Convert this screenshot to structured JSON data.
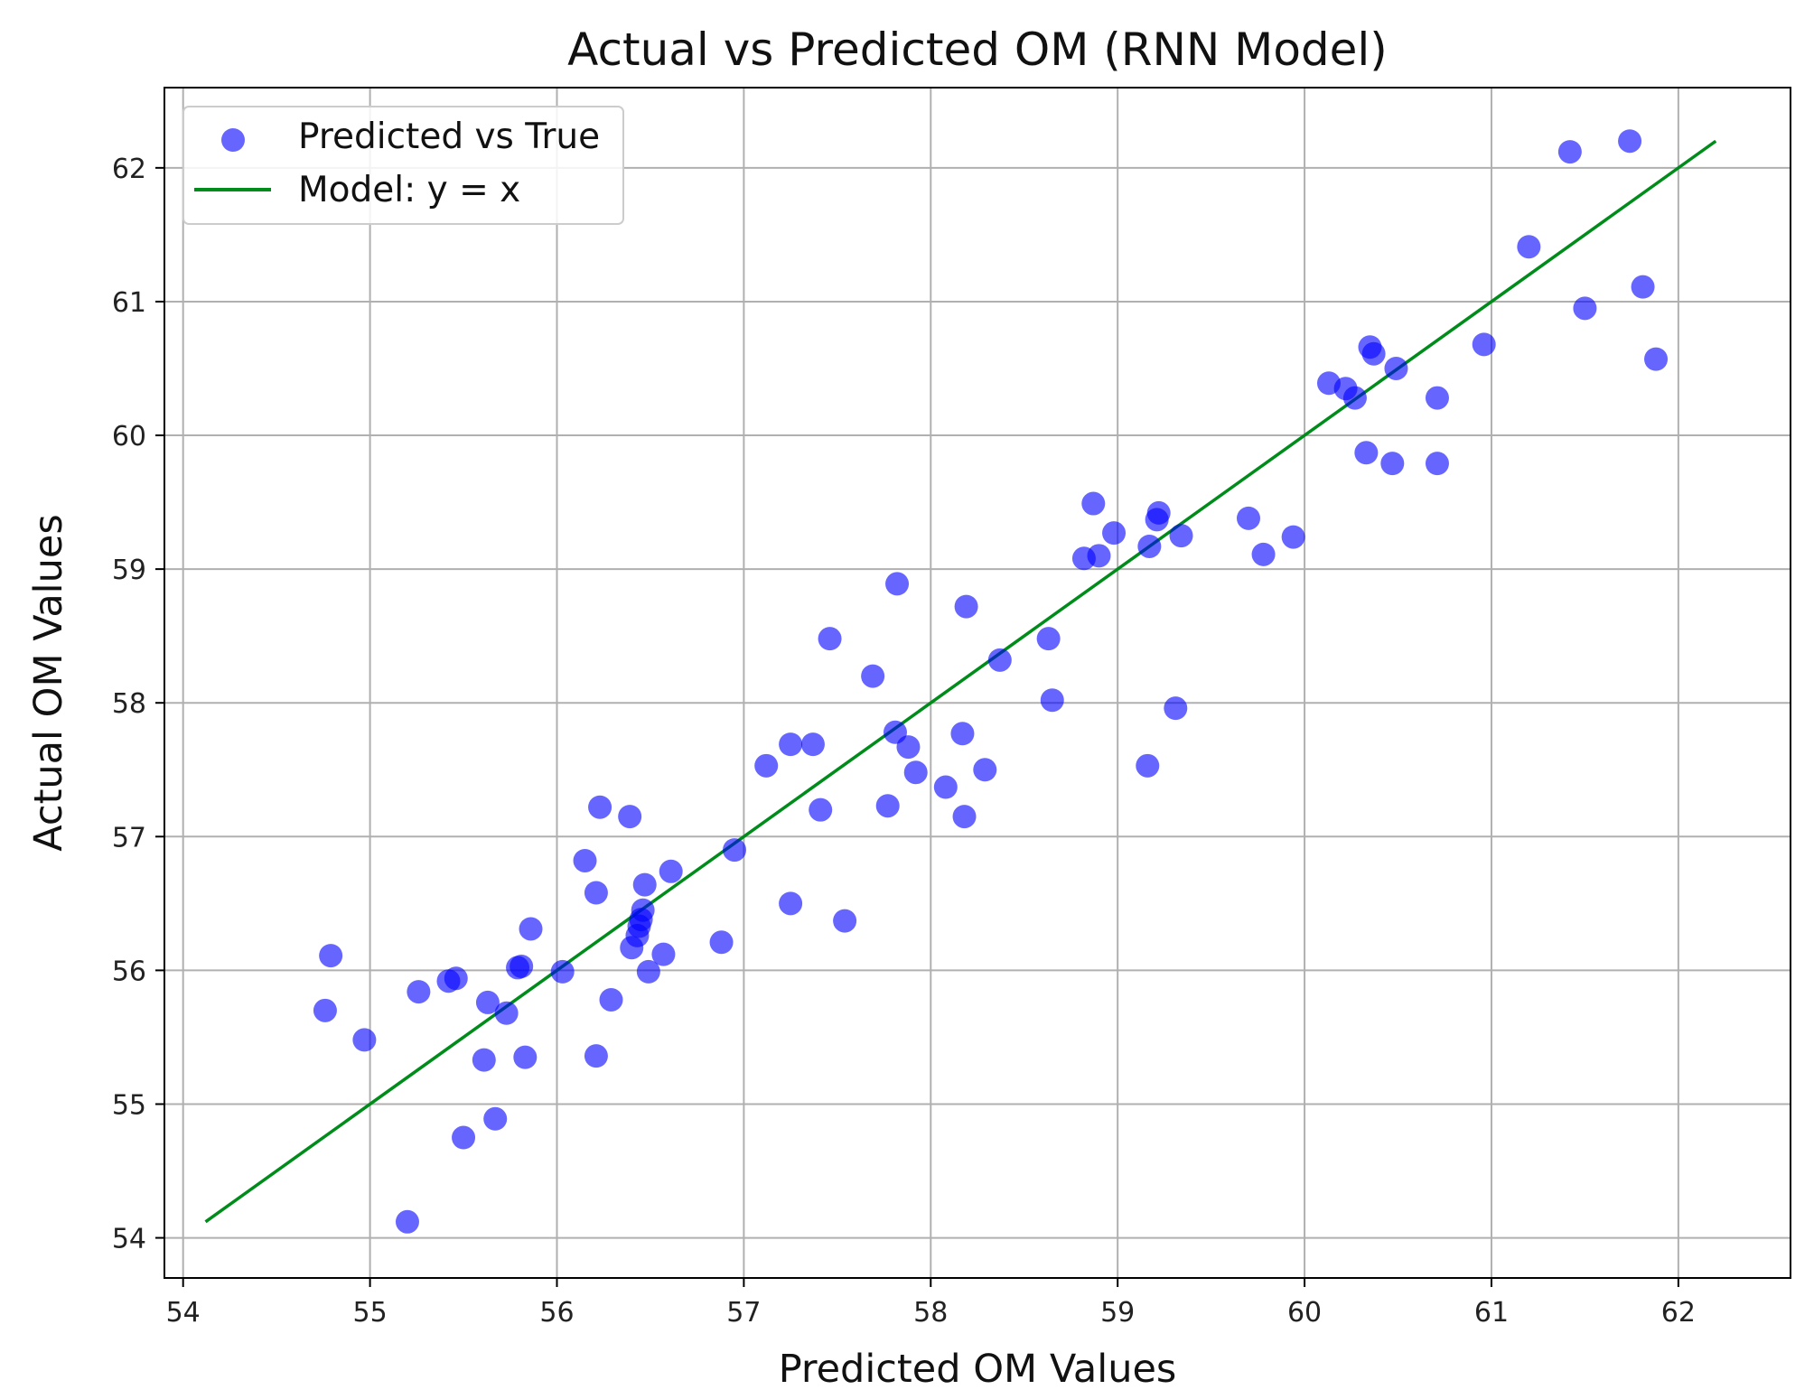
{
  "chart_data": {
    "type": "scatter",
    "title": "Actual vs Predicted OM (RNN Model)",
    "xlabel": "Predicted OM Values",
    "ylabel": "Actual OM Values",
    "xlim": [
      53.9,
      62.6
    ],
    "ylim": [
      53.7,
      62.6
    ],
    "xticks": [
      "54",
      "55",
      "56",
      "57",
      "58",
      "59",
      "60",
      "61",
      "62"
    ],
    "yticks": [
      "54",
      "55",
      "56",
      "57",
      "58",
      "59",
      "60",
      "61",
      "62"
    ],
    "grid": true,
    "legend_position": "top-left",
    "colors": {
      "points": "#0000ff",
      "line": "#008c1a",
      "grid": "#b0b0b0",
      "frame": "#000000"
    },
    "series": [
      {
        "name": "Predicted vs True",
        "kind": "scatter",
        "x": [
          54.76,
          54.79,
          54.97,
          55.2,
          55.26,
          55.42,
          55.46,
          55.5,
          55.61,
          55.63,
          55.67,
          55.73,
          55.79,
          55.81,
          55.83,
          55.86,
          56.03,
          56.15,
          56.21,
          56.21,
          56.23,
          56.29,
          56.39,
          56.4,
          56.43,
          56.44,
          56.45,
          56.46,
          56.47,
          56.49,
          56.57,
          56.61,
          56.88,
          56.95,
          57.12,
          57.25,
          57.25,
          57.37,
          57.41,
          57.46,
          57.54,
          57.69,
          57.77,
          57.81,
          57.82,
          57.88,
          57.92,
          58.08,
          58.17,
          58.18,
          58.19,
          58.29,
          58.37,
          58.63,
          58.65,
          58.82,
          58.87,
          58.9,
          58.98,
          59.16,
          59.17,
          59.21,
          59.22,
          59.31,
          59.34,
          59.7,
          59.78,
          59.94,
          60.13,
          60.22,
          60.27,
          60.33,
          60.35,
          60.37,
          60.47,
          60.49,
          60.71,
          60.71,
          60.96,
          61.2,
          61.42,
          61.5,
          61.74,
          61.81,
          61.88
        ],
        "y": [
          55.7,
          56.11,
          55.48,
          54.12,
          55.84,
          55.92,
          55.94,
          54.75,
          55.33,
          55.76,
          54.89,
          55.68,
          56.02,
          56.03,
          55.35,
          56.31,
          55.99,
          56.82,
          56.58,
          55.36,
          57.22,
          55.78,
          57.15,
          56.17,
          56.26,
          56.33,
          56.38,
          56.45,
          56.64,
          55.99,
          56.12,
          56.74,
          56.21,
          56.9,
          57.53,
          57.69,
          56.5,
          57.69,
          57.2,
          58.48,
          56.37,
          58.2,
          57.23,
          57.78,
          58.89,
          57.67,
          57.48,
          57.37,
          57.77,
          57.15,
          58.72,
          57.5,
          58.32,
          58.48,
          58.02,
          59.08,
          59.49,
          59.1,
          59.27,
          57.53,
          59.17,
          59.37,
          59.42,
          57.96,
          59.25,
          59.38,
          59.11,
          59.24,
          60.39,
          60.35,
          60.28,
          59.87,
          60.66,
          60.61,
          59.79,
          60.5,
          60.28,
          59.79,
          60.68,
          61.41,
          62.12,
          60.95,
          62.2,
          61.11,
          60.57
        ]
      },
      {
        "name": "Model: y = x",
        "kind": "line",
        "x": [
          54.12,
          62.2
        ],
        "y": [
          54.12,
          62.2
        ]
      }
    ]
  }
}
